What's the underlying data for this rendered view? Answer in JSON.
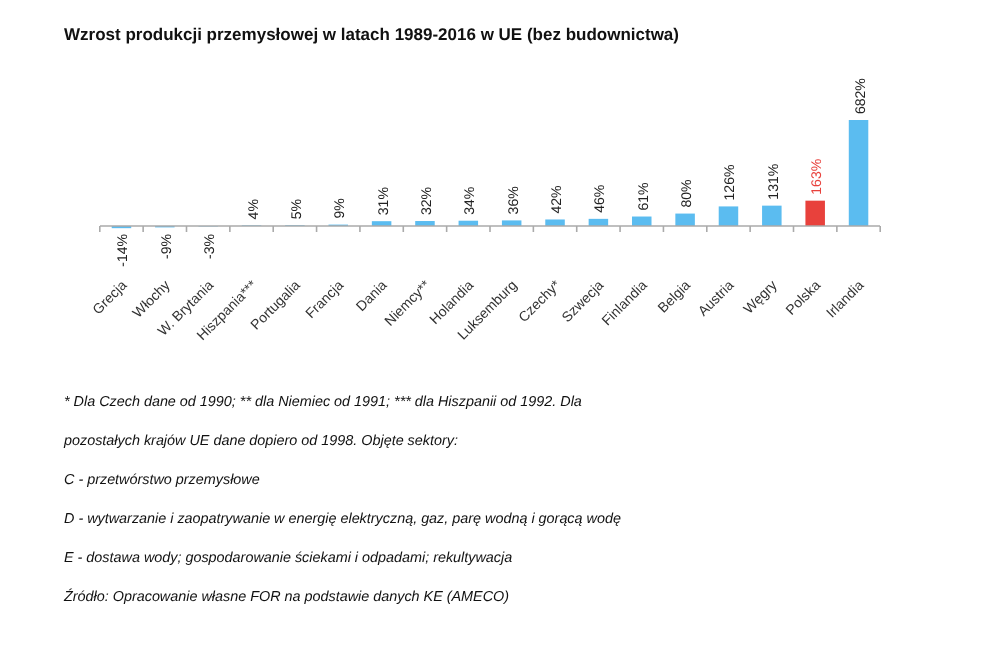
{
  "chart_data": {
    "type": "bar",
    "title": "Wzrost produkcji przemysłowej w latach 1989-2016 w UE (bez budownictwa)",
    "categories": [
      "Grecja",
      "Włochy",
      "W. Brytania",
      "Hiszpania***",
      "Portugalia",
      "Francja",
      "Dania",
      "Niemcy**",
      "Holandia",
      "Luksemburg",
      "Czechy*",
      "Szwecja",
      "Finlandia",
      "Belgia",
      "Austria",
      "Węgry",
      "Polska",
      "Irlandia"
    ],
    "values": [
      -14,
      -9,
      -3,
      4,
      5,
      9,
      31,
      32,
      34,
      36,
      42,
      46,
      61,
      80,
      126,
      131,
      163,
      682
    ],
    "colors": [
      "#5bbcf0",
      "#5bbcf0",
      "#5bbcf0",
      "#5bbcf0",
      "#5bbcf0",
      "#5bbcf0",
      "#5bbcf0",
      "#5bbcf0",
      "#5bbcf0",
      "#5bbcf0",
      "#5bbcf0",
      "#5bbcf0",
      "#5bbcf0",
      "#5bbcf0",
      "#5bbcf0",
      "#5bbcf0",
      "#e8413c",
      "#5bbcf0"
    ],
    "value_labels": [
      "-14%",
      "-9%",
      "-3%",
      "4%",
      "5%",
      "9%",
      "31%",
      "32%",
      "34%",
      "36%",
      "42%",
      "46%",
      "61%",
      "80%",
      "126%",
      "131%",
      "163%",
      "682%"
    ],
    "annotations": [
      "* Dla Czech dane od 1990; ** dla Niemiec od 1991; *** dla Hiszpanii od 1992. Dla",
      "pozostałych krajów UE dane dopiero od 1998. Objęte sektory:",
      "C - przetwórstwo przemysłowe",
      "D - wytwarzanie i zaopatrywanie w energię elektryczną, gaz, parę wodną i gorącą wodę",
      "E - dostawa wody; gospodarowanie ściekami i odpadami; rekultywacja",
      "Źródło: Opracowanie własne FOR na podstawie danych KE (AMECO)"
    ]
  }
}
